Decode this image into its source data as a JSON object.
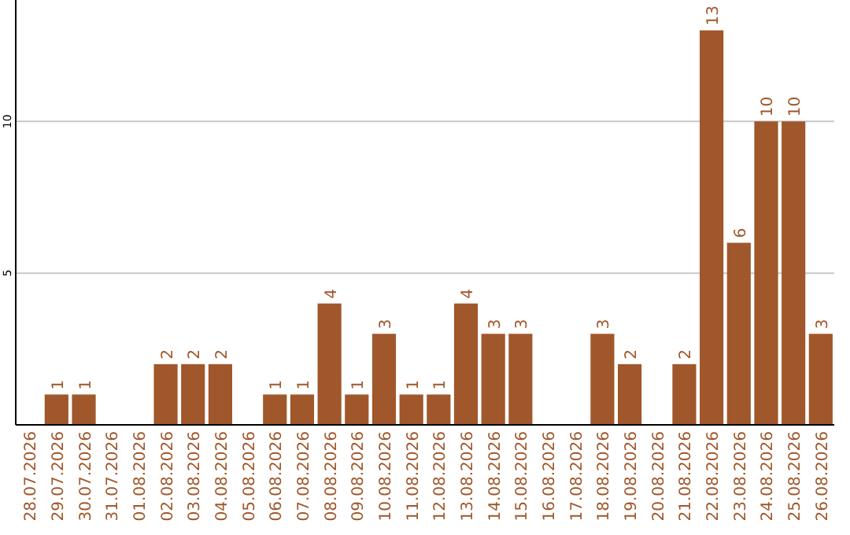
{
  "chart_data": {
    "type": "bar",
    "categories": [
      "28.07.2026",
      "29.07.2026",
      "30.07.2026",
      "31.07.2026",
      "01.08.2026",
      "02.08.2026",
      "03.08.2026",
      "04.08.2026",
      "05.08.2026",
      "06.08.2026",
      "07.08.2026",
      "08.08.2026",
      "09.08.2026",
      "10.08.2026",
      "11.08.2026",
      "12.08.2026",
      "13.08.2026",
      "14.08.2026",
      "15.08.2026",
      "16.08.2026",
      "17.08.2026",
      "18.08.2026",
      "19.08.2026",
      "20.08.2026",
      "21.08.2026",
      "22.08.2026",
      "23.08.2026",
      "24.08.2026",
      "25.08.2026",
      "26.08.2026"
    ],
    "values": [
      0,
      1,
      1,
      0,
      0,
      2,
      2,
      2,
      0,
      1,
      1,
      4,
      1,
      3,
      1,
      1,
      4,
      3,
      3,
      0,
      0,
      3,
      2,
      0,
      2,
      13,
      6,
      10,
      10,
      3
    ],
    "value_labels": [
      null,
      "1",
      "1",
      null,
      null,
      "2",
      "2",
      "2",
      null,
      "1",
      "1",
      "4",
      "1",
      "3",
      "1",
      "1",
      "4",
      "3",
      "3",
      null,
      null,
      "3",
      "2",
      null,
      "2",
      "13",
      "6",
      "10",
      "10",
      "3"
    ],
    "color": "#a0572b",
    "ylim": [
      0,
      14
    ],
    "yticks": [
      5,
      10
    ],
    "grid": "y"
  }
}
